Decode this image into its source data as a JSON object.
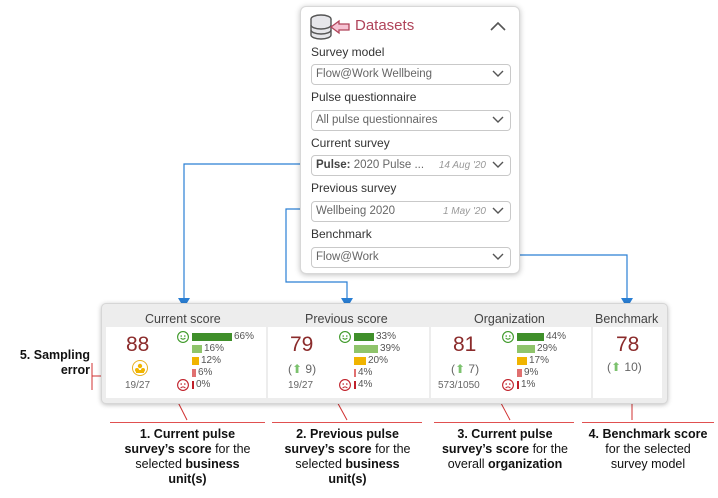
{
  "panel": {
    "title": "Datasets",
    "fields": [
      {
        "label": "Survey model",
        "value": "Flow@Work Wellbeing"
      },
      {
        "label": "Pulse questionnaire",
        "value": "All pulse questionnaires"
      },
      {
        "label": "Current survey",
        "value_prefix": "Pulse:",
        "value": "2020 Pulse ...",
        "date": "14 Aug '20"
      },
      {
        "label": "Previous survey",
        "value": "Wellbeing 2020",
        "date": "1 May '20"
      },
      {
        "label": "Benchmark",
        "value": "Flow@Work"
      }
    ]
  },
  "scores": {
    "current": {
      "title": "Current score",
      "score": "88",
      "count": "19/27",
      "pcts": [
        "66%",
        "16%",
        "12%",
        "6%",
        "0%"
      ],
      "fractions": [
        0.66,
        0.16,
        0.12,
        0.06,
        0.0
      ]
    },
    "previous": {
      "title": "Previous score",
      "score": "79",
      "delta": "9",
      "count": "19/27",
      "pcts": [
        "33%",
        "39%",
        "20%",
        "4%",
        "4%"
      ],
      "fractions": [
        0.33,
        0.39,
        0.2,
        0.04,
        0.04
      ]
    },
    "organization": {
      "title": "Organization",
      "score": "81",
      "delta": "7",
      "count": "573/1050",
      "pcts": [
        "44%",
        "29%",
        "17%",
        "9%",
        "1%"
      ],
      "fractions": [
        0.44,
        0.29,
        0.17,
        0.09,
        0.01
      ]
    },
    "benchmark": {
      "title": "Benchmark",
      "score": "78",
      "delta": "10"
    }
  },
  "annotations": {
    "sampling": {
      "line1": "5. Sampling",
      "line2": "error"
    },
    "a1": {
      "l1": "1. Current pulse",
      "l2a": "survey’s score",
      "l2b": " for the",
      "l3": "selected ",
      "l3b": "business",
      "l4": "unit(s)"
    },
    "a2": {
      "l1": "2. Previous pulse",
      "l2a": "survey’s score",
      "l2b": " for the",
      "l3": "selected ",
      "l3b": "business",
      "l4": "unit(s)"
    },
    "a3": {
      "l1": "3. Current pulse",
      "l2a": "survey’s score",
      "l2b": " for the",
      "l3": "overall ",
      "l3b": "organization"
    },
    "a4": {
      "l1": "4. Benchmark score",
      "l2": "for the selected",
      "l3": "survey model"
    }
  },
  "colors": {
    "accent": "#b0445a",
    "connector": "#2a7fd4",
    "score": "#8b2b2b",
    "annotation_line": "#e05050",
    "bars": [
      "#3f8f2a",
      "#8fc46b",
      "#f0b400",
      "#e07070",
      "#c0202a"
    ]
  }
}
